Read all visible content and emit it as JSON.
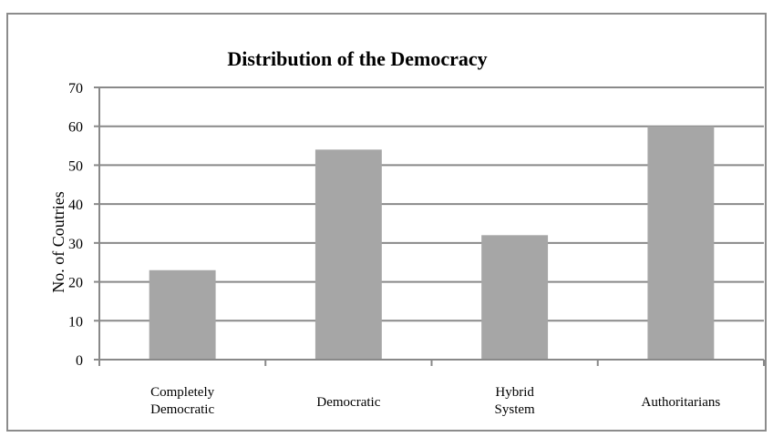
{
  "chart_data": {
    "type": "bar",
    "title": "Distribution of the Democracy",
    "ylabel": "No. of Coutries",
    "xlabel": "",
    "categories": [
      [
        "Completely",
        "Democratic"
      ],
      [
        "Democratic"
      ],
      [
        "Hybrid",
        "System"
      ],
      [
        "Authoritarians"
      ]
    ],
    "values": [
      23,
      54,
      32,
      60
    ],
    "ylim": [
      0,
      70
    ],
    "yticks": [
      0,
      10,
      20,
      30,
      40,
      50,
      60,
      70
    ],
    "grid": true,
    "legend": "none",
    "bar_color": "#a6a6a6",
    "grid_color": "#898989"
  }
}
